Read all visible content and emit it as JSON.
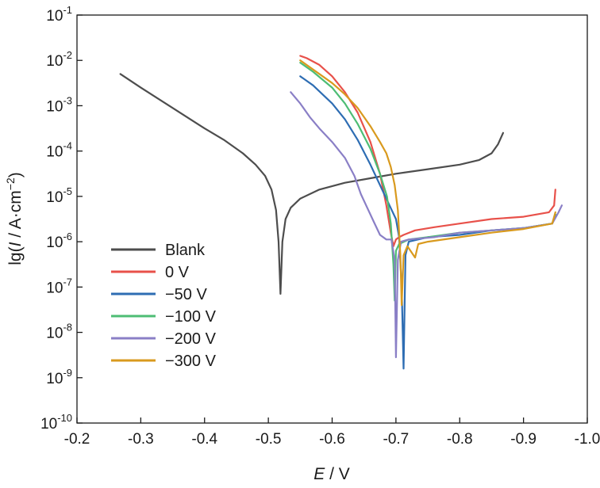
{
  "chart_data": {
    "type": "line",
    "title": "",
    "xlabel": {
      "italic": "E",
      "rest": " / V"
    },
    "ylabel": {
      "prefix": "lg(",
      "italic": "I",
      "middle": " / A·cm",
      "sup": "−2",
      "suffix": ")"
    },
    "xlim": [
      -0.2,
      -1.0
    ],
    "x_reversed": true,
    "ylim_exponent": [
      -10,
      -1
    ],
    "y_scale": "log",
    "x_ticks": [
      "-0.2",
      "-0.3",
      "-0.4",
      "-0.5",
      "-0.6",
      "-0.7",
      "-0.8",
      "-0.9",
      "-1.0"
    ],
    "x_tick_values": [
      -0.2,
      -0.3,
      -0.4,
      -0.5,
      -0.6,
      -0.7,
      -0.8,
      -0.9,
      -1.0
    ],
    "y_tick_exponents": [
      "-1",
      "-2",
      "-3",
      "-4",
      "-5",
      "-6",
      "-7",
      "-8",
      "-9",
      "-10"
    ],
    "y_tick_base": "10",
    "grid": false,
    "legend_position": "bottom-left",
    "series": [
      {
        "name": "Blank",
        "color": "#4d4d4d",
        "points": [
          [
            -0.268,
            -2.3
          ],
          [
            -0.3,
            -2.6
          ],
          [
            -0.35,
            -3.05
          ],
          [
            -0.4,
            -3.5
          ],
          [
            -0.43,
            -3.75
          ],
          [
            -0.46,
            -4.05
          ],
          [
            -0.48,
            -4.3
          ],
          [
            -0.495,
            -4.55
          ],
          [
            -0.505,
            -4.85
          ],
          [
            -0.512,
            -5.3
          ],
          [
            -0.516,
            -6.0
          ],
          [
            -0.519,
            -7.15
          ],
          [
            -0.522,
            -6.0
          ],
          [
            -0.527,
            -5.5
          ],
          [
            -0.535,
            -5.25
          ],
          [
            -0.55,
            -5.05
          ],
          [
            -0.58,
            -4.85
          ],
          [
            -0.62,
            -4.7
          ],
          [
            -0.66,
            -4.6
          ],
          [
            -0.7,
            -4.5
          ],
          [
            -0.75,
            -4.4
          ],
          [
            -0.8,
            -4.3
          ],
          [
            -0.83,
            -4.2
          ],
          [
            -0.85,
            -4.05
          ],
          [
            -0.86,
            -3.85
          ],
          [
            -0.868,
            -3.6
          ]
        ]
      },
      {
        "name": "0 V",
        "color": "#e8514a",
        "points": [
          [
            -0.55,
            -1.9
          ],
          [
            -0.56,
            -1.95
          ],
          [
            -0.58,
            -2.1
          ],
          [
            -0.6,
            -2.35
          ],
          [
            -0.62,
            -2.7
          ],
          [
            -0.64,
            -3.15
          ],
          [
            -0.66,
            -3.8
          ],
          [
            -0.675,
            -4.5
          ],
          [
            -0.685,
            -5.2
          ],
          [
            -0.692,
            -5.8
          ],
          [
            -0.696,
            -6.1
          ],
          [
            -0.7,
            -5.95
          ],
          [
            -0.705,
            -5.9
          ],
          [
            -0.712,
            -5.85
          ],
          [
            -0.73,
            -5.75
          ],
          [
            -0.76,
            -5.68
          ],
          [
            -0.8,
            -5.6
          ],
          [
            -0.85,
            -5.5
          ],
          [
            -0.9,
            -5.45
          ],
          [
            -0.94,
            -5.35
          ],
          [
            -0.948,
            -5.2
          ],
          [
            -0.95,
            -4.85
          ]
        ]
      },
      {
        "name": "−50 V",
        "color": "#2e6db3",
        "points": [
          [
            -0.55,
            -2.35
          ],
          [
            -0.57,
            -2.55
          ],
          [
            -0.6,
            -2.95
          ],
          [
            -0.62,
            -3.3
          ],
          [
            -0.64,
            -3.75
          ],
          [
            -0.66,
            -4.3
          ],
          [
            -0.675,
            -4.75
          ],
          [
            -0.69,
            -5.2
          ],
          [
            -0.7,
            -5.5
          ],
          [
            -0.705,
            -5.9
          ],
          [
            -0.709,
            -7.0
          ],
          [
            -0.712,
            -8.8
          ],
          [
            -0.715,
            -6.3
          ],
          [
            -0.72,
            -6.0
          ],
          [
            -0.75,
            -5.9
          ],
          [
            -0.8,
            -5.85
          ],
          [
            -0.85,
            -5.75
          ],
          [
            -0.9,
            -5.7
          ],
          [
            -0.945,
            -5.6
          ],
          [
            -0.95,
            -5.4
          ]
        ]
      },
      {
        "name": "−100 V",
        "color": "#4dbd74",
        "points": [
          [
            -0.55,
            -2.05
          ],
          [
            -0.57,
            -2.25
          ],
          [
            -0.6,
            -2.6
          ],
          [
            -0.62,
            -2.95
          ],
          [
            -0.64,
            -3.4
          ],
          [
            -0.66,
            -3.95
          ],
          [
            -0.675,
            -4.5
          ],
          [
            -0.686,
            -5.0
          ],
          [
            -0.692,
            -5.6
          ],
          [
            -0.696,
            -6.5
          ],
          [
            -0.698,
            -7.3
          ],
          [
            -0.7,
            -6.2
          ],
          [
            -0.705,
            -6.05
          ],
          [
            -0.72,
            -5.95
          ],
          [
            -0.75,
            -5.9
          ],
          [
            -0.8,
            -5.8
          ],
          [
            -0.85,
            -5.75
          ],
          [
            -0.9,
            -5.7
          ],
          [
            -0.945,
            -5.6
          ],
          [
            -0.95,
            -5.4
          ]
        ]
      },
      {
        "name": "−200 V",
        "color": "#8a7fc6",
        "points": [
          [
            -0.535,
            -2.7
          ],
          [
            -0.55,
            -2.95
          ],
          [
            -0.565,
            -3.25
          ],
          [
            -0.58,
            -3.5
          ],
          [
            -0.6,
            -3.8
          ],
          [
            -0.62,
            -4.15
          ],
          [
            -0.635,
            -4.55
          ],
          [
            -0.645,
            -4.95
          ],
          [
            -0.655,
            -5.25
          ],
          [
            -0.665,
            -5.55
          ],
          [
            -0.675,
            -5.85
          ],
          [
            -0.685,
            -5.95
          ],
          [
            -0.693,
            -5.95
          ],
          [
            -0.698,
            -6.4
          ],
          [
            -0.7,
            -8.55
          ],
          [
            -0.703,
            -6.4
          ],
          [
            -0.708,
            -6.0
          ],
          [
            -0.72,
            -5.95
          ],
          [
            -0.76,
            -5.9
          ],
          [
            -0.8,
            -5.8
          ],
          [
            -0.85,
            -5.75
          ],
          [
            -0.9,
            -5.7
          ],
          [
            -0.945,
            -5.6
          ],
          [
            -0.955,
            -5.35
          ],
          [
            -0.96,
            -5.2
          ]
        ]
      },
      {
        "name": "−300 V",
        "color": "#d99a1e",
        "points": [
          [
            -0.55,
            -2.0
          ],
          [
            -0.57,
            -2.2
          ],
          [
            -0.6,
            -2.5
          ],
          [
            -0.62,
            -2.75
          ],
          [
            -0.64,
            -3.05
          ],
          [
            -0.66,
            -3.45
          ],
          [
            -0.675,
            -3.8
          ],
          [
            -0.685,
            -4.05
          ],
          [
            -0.692,
            -4.35
          ],
          [
            -0.698,
            -4.75
          ],
          [
            -0.703,
            -5.3
          ],
          [
            -0.707,
            -6.3
          ],
          [
            -0.709,
            -7.4
          ],
          [
            -0.712,
            -6.3
          ],
          [
            -0.718,
            -6.1
          ],
          [
            -0.73,
            -6.35
          ],
          [
            -0.735,
            -6.05
          ],
          [
            -0.75,
            -6.0
          ],
          [
            -0.8,
            -5.9
          ],
          [
            -0.85,
            -5.8
          ],
          [
            -0.9,
            -5.72
          ],
          [
            -0.945,
            -5.6
          ],
          [
            -0.95,
            -5.35
          ]
        ]
      }
    ]
  }
}
